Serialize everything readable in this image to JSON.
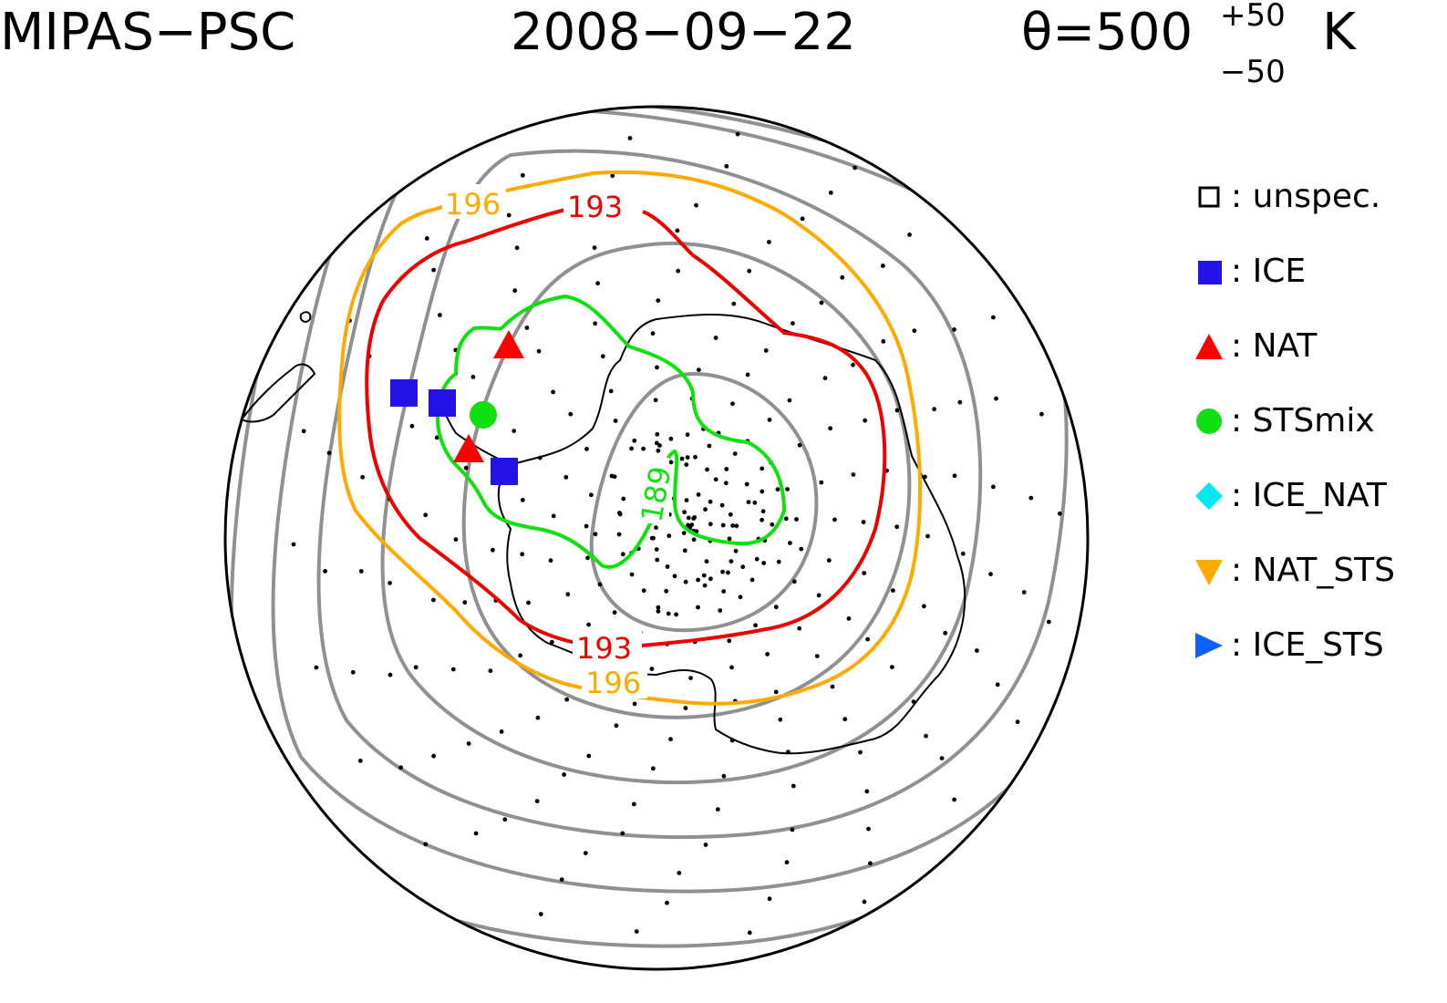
{
  "header": {
    "instrument": "MIPAS−PSC",
    "date": "2008−09−22",
    "level_prefix": "θ=500",
    "level_plus": "+50",
    "level_minus": "−50",
    "level_unit": "K"
  },
  "legend": [
    {
      "label": ": unspec.",
      "symbol": "open-square",
      "color": "#000000"
    },
    {
      "label": ": ICE",
      "symbol": "square",
      "color": "#2412e6"
    },
    {
      "label": ": NAT",
      "symbol": "triangle-up",
      "color": "#ff0000"
    },
    {
      "label": ": STSmix",
      "symbol": "circle",
      "color": "#10e010"
    },
    {
      "label": ": ICE_NAT",
      "symbol": "diamond",
      "color": "#00e8f0"
    },
    {
      "label": ": NAT_STS",
      "symbol": "triangle-down",
      "color": "#ffaa00"
    },
    {
      "label": ": ICE_STS",
      "symbol": "triangle-right",
      "color": "#1060ff"
    }
  ],
  "contour_labels": {
    "t196": "196",
    "t193": "193",
    "t189": "189"
  },
  "colors": {
    "t196": "#ffaa00",
    "t193": "#ee0000",
    "t189": "#10e010",
    "background_contours": "#909090",
    "coastline": "#000000"
  }
}
